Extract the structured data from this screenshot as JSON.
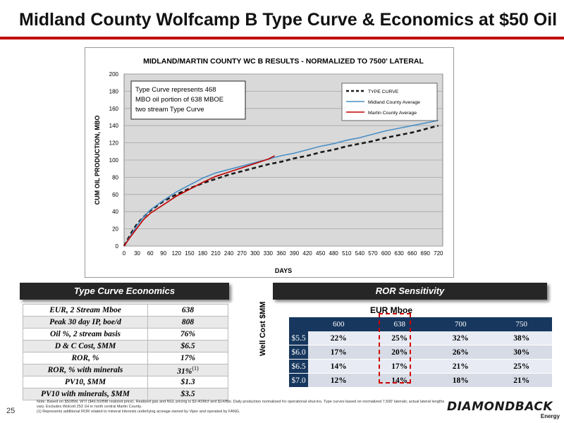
{
  "page": {
    "title": "Midland County Wolfcamp B Type Curve & Economics at $50 Oil",
    "page_number": "25",
    "notes": [
      "Note: Based on $50/Bbl. WTI ($46.50/BBl realized price). Realized gas and NGL pricing is $3.40/Mcf and $14/Bbl. Daily production normalized for operational shut-ins. Type curves based on normalized 7,500' laterals; actual lateral lengths vary. Excludes Wolcott 253 1H in north central Martin County.",
      "(1) Represents additional ROR related to mineral interests underlying acreage owned by Viper and operated by FANG."
    ],
    "logo": {
      "name": "DIAMONDBACK",
      "sub": "Energy"
    }
  },
  "chart_data": {
    "type": "line",
    "title": "MIDLAND/MARTIN COUNTY WC B  RESULTS - NORMALIZED TO 7500' LATERAL",
    "xlabel": "DAYS",
    "ylabel": "CUM OIL PRODUCTION, MBO",
    "xlim": [
      0,
      730
    ],
    "ylim": [
      0,
      200
    ],
    "x_ticks": [
      0,
      30,
      60,
      90,
      120,
      150,
      180,
      210,
      240,
      270,
      300,
      330,
      360,
      390,
      420,
      450,
      480,
      510,
      540,
      570,
      600,
      630,
      660,
      690,
      720
    ],
    "y_ticks": [
      0,
      20,
      40,
      60,
      80,
      100,
      120,
      140,
      160,
      180,
      200
    ],
    "grid": true,
    "legend_position": "top-right",
    "annotation": [
      "Type Curve represents 468",
      "MBO oil portion of 638 MBOE",
      "two stream Type Curve"
    ],
    "series": [
      {
        "name": "TYPE CURVE",
        "color": "#1a1a1a",
        "style": "dashed",
        "x": [
          0,
          15,
          30,
          45,
          60,
          90,
          120,
          150,
          180,
          210,
          240,
          270,
          300,
          330,
          360,
          390,
          420,
          450,
          480,
          510,
          540,
          570,
          600,
          630,
          660,
          690,
          720
        ],
        "y": [
          0,
          14,
          26,
          34,
          41,
          52,
          60,
          67,
          73,
          78,
          83,
          87,
          91,
          95,
          98,
          102,
          105,
          109,
          112,
          116,
          119,
          122,
          126,
          129,
          132,
          136,
          140
        ]
      },
      {
        "name": "Midland County Average",
        "color": "#4a8fc6",
        "style": "solid",
        "x": [
          0,
          15,
          30,
          45,
          60,
          90,
          120,
          150,
          180,
          210,
          240,
          270,
          300,
          330,
          360,
          390,
          420,
          450,
          480,
          510,
          540,
          570,
          600,
          630,
          660,
          690,
          720
        ],
        "y": [
          0,
          12,
          24,
          34,
          42,
          53,
          63,
          71,
          79,
          85,
          89,
          93,
          97,
          101,
          105,
          108,
          112,
          116,
          119,
          123,
          126,
          130,
          134,
          137,
          140,
          143,
          146
        ]
      },
      {
        "name": "Martin County Average",
        "color": "#c00000",
        "style": "solid",
        "x": [
          0,
          15,
          30,
          45,
          60,
          90,
          120,
          150,
          180,
          210,
          240,
          270,
          300,
          330,
          345
        ],
        "y": [
          0,
          11,
          21,
          31,
          38,
          48,
          58,
          66,
          74,
          81,
          86,
          91,
          96,
          101,
          105
        ]
      }
    ]
  },
  "type_curve_economics": {
    "header": "Type Curve Economics",
    "rows": [
      {
        "label": "EUR, 2 Stream Mboe",
        "value": "638"
      },
      {
        "label": "Peak 30 day IP, boe/d",
        "value": "808"
      },
      {
        "label": "Oil %, 2 stream basis",
        "value": "76%"
      },
      {
        "label": "D & C Cost, $MM",
        "value": "$6.5"
      },
      {
        "label": "ROR, %",
        "value": "17%"
      },
      {
        "label": "ROR, % with minerals",
        "value": "31%",
        "footnote": "(1)"
      },
      {
        "label": "PV10, $MM",
        "value": "$1.3"
      },
      {
        "label": "PV10 with minerals, $MM",
        "value": "$3.5"
      }
    ]
  },
  "ror_sensitivity": {
    "header": "ROR Sensitivity",
    "col_axis_label": "EUR Mboe",
    "row_axis_label": "Well Cost $MM",
    "columns": [
      "600",
      "638",
      "700",
      "750"
    ],
    "rows": [
      {
        "label": "$5.5",
        "values": [
          "22%",
          "25%",
          "32%",
          "38%"
        ]
      },
      {
        "label": "$6.0",
        "values": [
          "17%",
          "20%",
          "26%",
          "30%"
        ]
      },
      {
        "label": "$6.5",
        "values": [
          "14%",
          "17%",
          "21%",
          "25%"
        ]
      },
      {
        "label": "$7.0",
        "values": [
          "12%",
          "14%",
          "18%",
          "21%"
        ]
      }
    ]
  }
}
